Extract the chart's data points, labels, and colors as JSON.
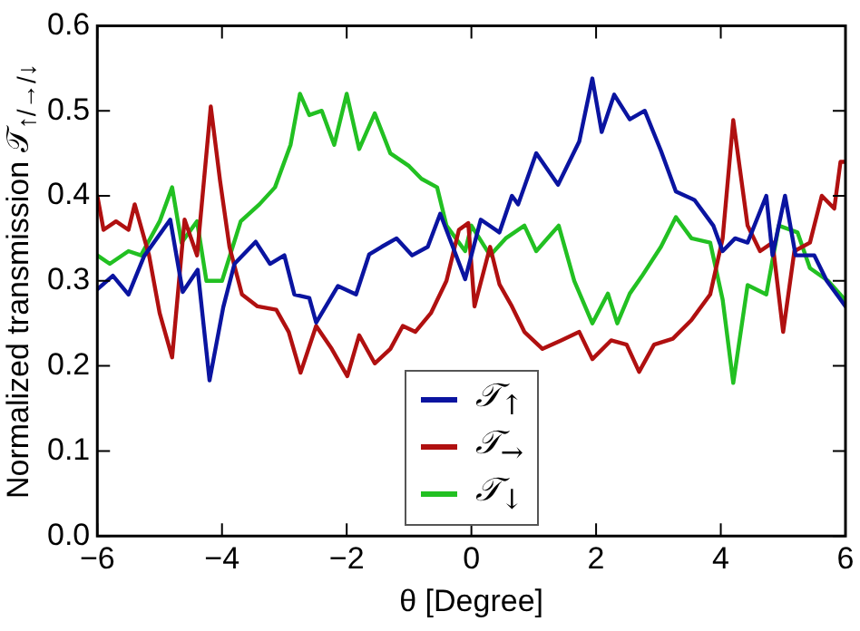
{
  "chart_data": {
    "type": "line",
    "xlabel": "θ [Degree]",
    "ylabel": "Normalized transmission 𝒯$_{↑/→/↓}$",
    "xlim": [
      -6,
      6
    ],
    "xticks": [
      {
        "value": -6,
        "label": "−6"
      },
      {
        "value": -4,
        "label": "−4"
      },
      {
        "value": -2,
        "label": "−2"
      },
      0,
      2,
      4,
      6
    ],
    "ylim": [
      0,
      0.6
    ],
    "yticks": [
      {
        "value": 0,
        "label": "0.0"
      },
      0.1,
      0.2,
      0.3,
      0.4,
      0.5,
      0.6
    ],
    "grid": false,
    "legend": "bottom",
    "marker": "none",
    "line_style": "solid",
    "series": [
      {
        "name": "𝒯$_{↑}$",
        "color": "#0a14a0",
        "x": [
          -6,
          -5.75,
          -5.5,
          -5.25,
          -4.83,
          -4.63,
          -4.39,
          -4.2,
          -3.98,
          -3.8,
          -3.46,
          -3.23,
          -3,
          -2.84,
          -2.6,
          -2.49,
          -2.14,
          -1.85,
          -1.64,
          -1.44,
          -1.2,
          -0.95,
          -0.7,
          -0.5,
          -0.1,
          0.15,
          0.45,
          0.65,
          0.75,
          1.04,
          1.39,
          1.73,
          1.94,
          2.09,
          2.29,
          2.54,
          2.78,
          3.04,
          3.28,
          3.58,
          3.88,
          4.03,
          4.23,
          4.43,
          4.73,
          4.83,
          5.03,
          5.2,
          5.5,
          5.7,
          5.9,
          6
        ],
        "values": [
          0.29,
          0.306,
          0.284,
          0.329,
          0.372,
          0.287,
          0.313,
          0.183,
          0.269,
          0.32,
          0.346,
          0.32,
          0.33,
          0.284,
          0.28,
          0.251,
          0.294,
          0.284,
          0.331,
          0.34,
          0.35,
          0.33,
          0.34,
          0.379,
          0.302,
          0.372,
          0.357,
          0.4,
          0.39,
          0.45,
          0.413,
          0.464,
          0.538,
          0.475,
          0.519,
          0.49,
          0.5,
          0.453,
          0.405,
          0.395,
          0.365,
          0.335,
          0.35,
          0.345,
          0.4,
          0.33,
          0.4,
          0.33,
          0.33,
          0.3,
          0.28,
          0.27
        ]
      },
      {
        "name": "𝒯$_{→}$",
        "color": "#b01010",
        "x": [
          -6,
          -5.9,
          -5.7,
          -5.5,
          -5.4,
          -5.17,
          -5,
          -4.8,
          -4.6,
          -4.4,
          -4.18,
          -4.03,
          -3.88,
          -3.68,
          -3.43,
          -3.13,
          -2.93,
          -2.74,
          -2.49,
          -2.24,
          -1.99,
          -1.8,
          -1.55,
          -1.3,
          -1.1,
          -0.9,
          -0.65,
          -0.4,
          -0.2,
          -0.05,
          0.05,
          0.3,
          0.45,
          0.65,
          0.85,
          1.14,
          1.44,
          1.73,
          1.94,
          2.24,
          2.49,
          2.69,
          2.93,
          3.23,
          3.53,
          3.83,
          4.03,
          4.2,
          4.43,
          4.63,
          4.83,
          5,
          5.18,
          5.43,
          5.62,
          5.82,
          5.92,
          6
        ],
        "values": [
          0.4,
          0.36,
          0.37,
          0.36,
          0.39,
          0.33,
          0.262,
          0.21,
          0.372,
          0.33,
          0.505,
          0.417,
          0.34,
          0.284,
          0.27,
          0.266,
          0.24,
          0.192,
          0.247,
          0.22,
          0.188,
          0.236,
          0.203,
          0.22,
          0.247,
          0.24,
          0.262,
          0.3,
          0.36,
          0.368,
          0.27,
          0.34,
          0.296,
          0.27,
          0.24,
          0.22,
          0.23,
          0.24,
          0.208,
          0.23,
          0.225,
          0.193,
          0.225,
          0.232,
          0.254,
          0.284,
          0.35,
          0.489,
          0.365,
          0.335,
          0.345,
          0.24,
          0.335,
          0.345,
          0.4,
          0.385,
          0.44,
          0.44
        ]
      },
      {
        "name": "𝒯$_{↓}$",
        "color": "#22c022",
        "x": [
          -6,
          -5.8,
          -5.5,
          -5.3,
          -5,
          -4.8,
          -4.65,
          -4.4,
          -4.25,
          -4,
          -3.7,
          -3.4,
          -3.15,
          -2.9,
          -2.75,
          -2.6,
          -2.4,
          -2.2,
          -2,
          -1.8,
          -1.55,
          -1.3,
          -1,
          -0.8,
          -0.55,
          -0.4,
          -0.1,
          0,
          0.3,
          0.55,
          0.85,
          1.04,
          1.4,
          1.65,
          1.94,
          2.19,
          2.34,
          2.54,
          2.73,
          3.04,
          3.28,
          3.53,
          3.83,
          4.03,
          4.2,
          4.43,
          4.73,
          4.93,
          5.23,
          5.43,
          5.72,
          6
        ],
        "values": [
          0.33,
          0.32,
          0.335,
          0.33,
          0.37,
          0.41,
          0.345,
          0.37,
          0.3,
          0.3,
          0.37,
          0.39,
          0.41,
          0.46,
          0.52,
          0.495,
          0.5,
          0.46,
          0.52,
          0.455,
          0.497,
          0.45,
          0.435,
          0.42,
          0.41,
          0.365,
          0.335,
          0.365,
          0.33,
          0.35,
          0.365,
          0.335,
          0.365,
          0.3,
          0.25,
          0.285,
          0.25,
          0.285,
          0.305,
          0.34,
          0.375,
          0.35,
          0.345,
          0.278,
          0.18,
          0.295,
          0.284,
          0.365,
          0.357,
          0.315,
          0.3,
          0.277
        ]
      }
    ]
  }
}
